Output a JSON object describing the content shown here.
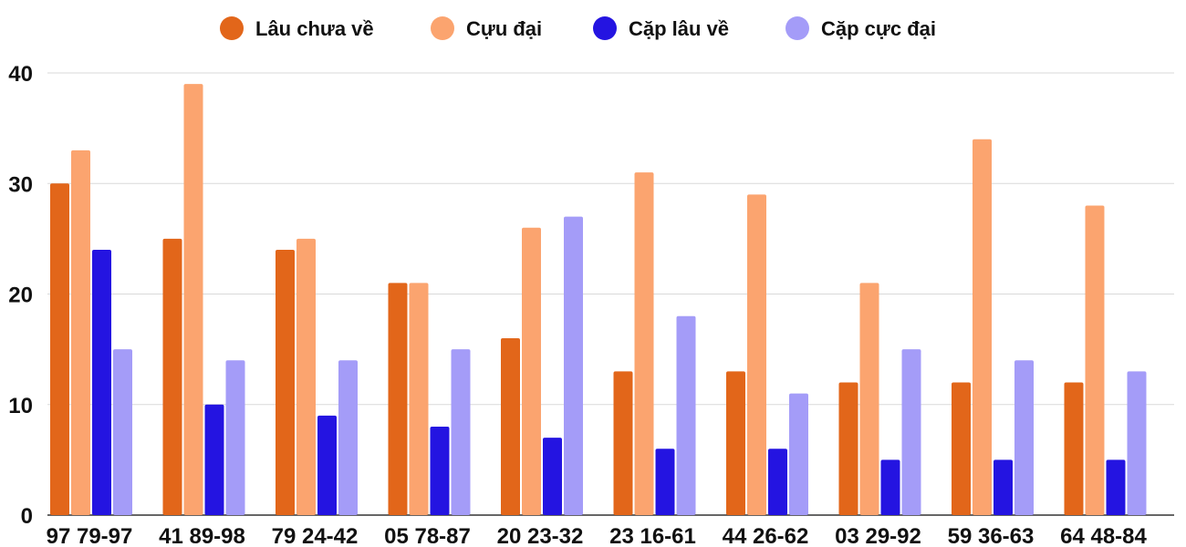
{
  "chart_data": {
    "type": "bar",
    "categories": [
      "97 79-97",
      "41 89-98",
      "79 24-42",
      "05 78-87",
      "20 23-32",
      "23 16-61",
      "44 26-62",
      "03 29-92",
      "59 36-63",
      "64 48-84"
    ],
    "series": [
      {
        "name": "Lâu chưa về",
        "color": "#e2661a",
        "values": [
          30,
          25,
          24,
          21,
          16,
          13,
          13,
          12,
          12,
          12
        ]
      },
      {
        "name": "Cựu đại",
        "color": "#fba46f",
        "values": [
          33,
          39,
          25,
          21,
          26,
          31,
          29,
          21,
          34,
          28
        ]
      },
      {
        "name": "Cặp lâu về",
        "color": "#2414e1",
        "values": [
          24,
          10,
          9,
          8,
          7,
          6,
          6,
          5,
          5,
          5
        ]
      },
      {
        "name": "Cặp cực đại",
        "color": "#a49cf8",
        "values": [
          15,
          14,
          14,
          15,
          27,
          18,
          11,
          15,
          14,
          13
        ]
      }
    ],
    "yticks": [
      "0",
      "10",
      "20",
      "30",
      "40"
    ],
    "ylim": [
      0,
      40
    ],
    "grid": true,
    "legend_position": "top-center"
  }
}
